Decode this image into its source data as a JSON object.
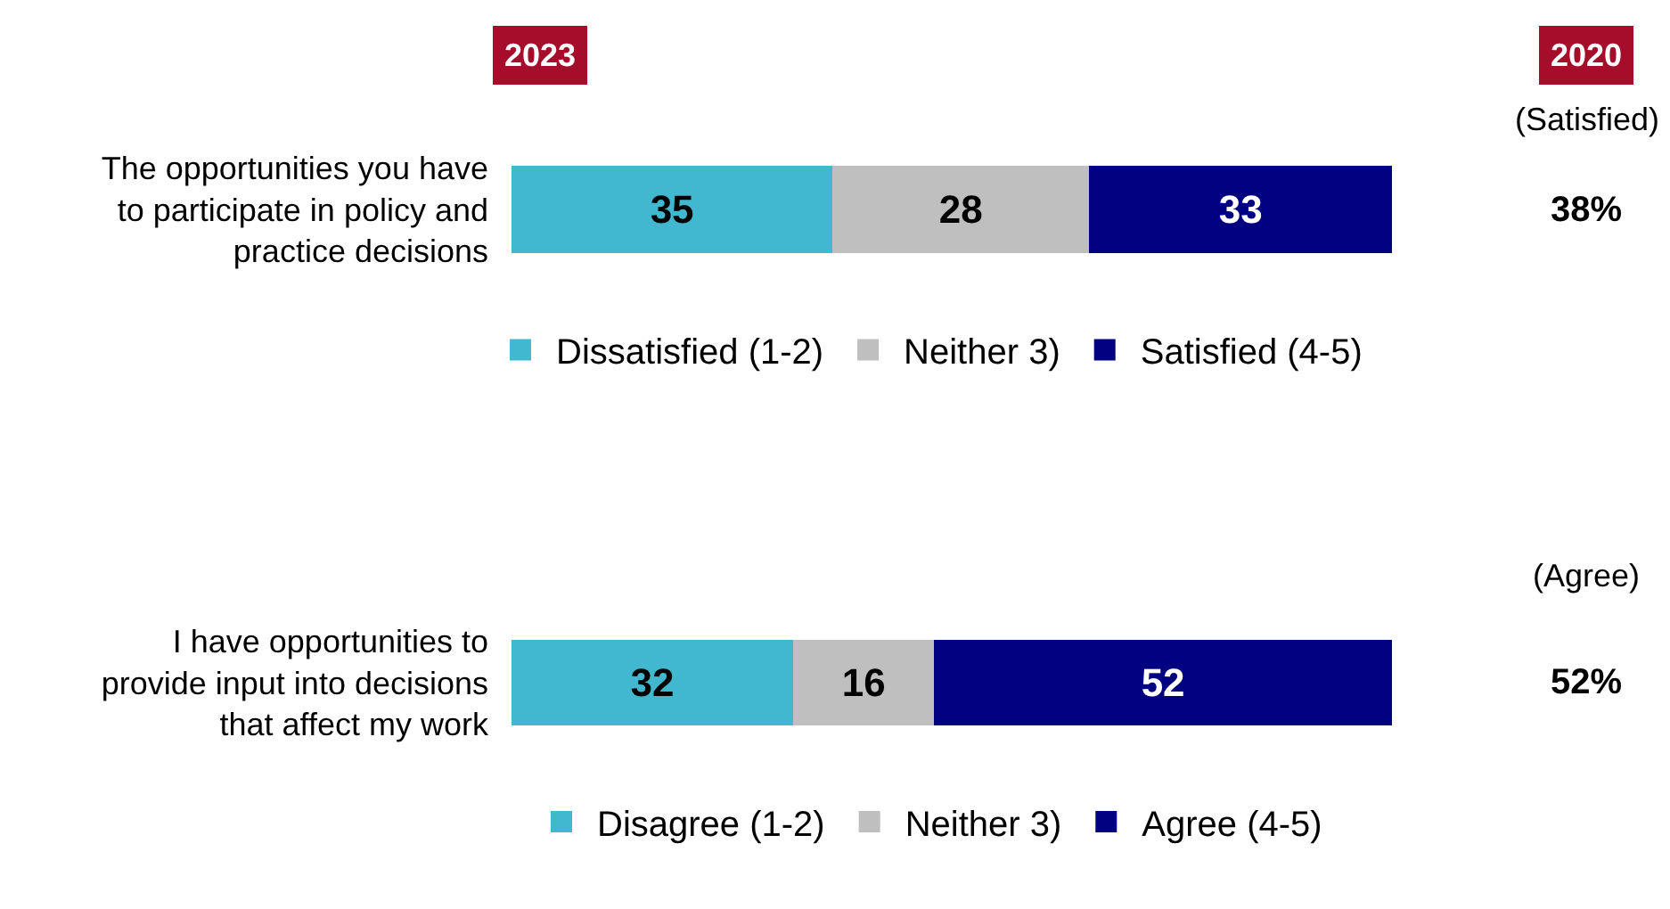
{
  "chart_data": [
    {
      "type": "bar",
      "orientation": "horizontal",
      "stacked": true,
      "categories": [
        "The opportunities you have to participate in policy and practice decisions"
      ],
      "tick_labels": "y",
      "grid": false,
      "data_labels": true,
      "legend": "bottom",
      "series": [
        {
          "name": "Dissatisfied (1-2)",
          "color": "#41b8d0",
          "values": [
            35
          ]
        },
        {
          "name": "Neither 3)",
          "color": "#bfbfbf",
          "values": [
            28
          ]
        },
        {
          "name": "Satisfied (4-5)",
          "color": "#000080",
          "values": [
            33
          ]
        }
      ],
      "annotations": [
        "2023",
        "2020",
        "(Satisfied)",
        "38%"
      ]
    },
    {
      "type": "bar",
      "orientation": "horizontal",
      "stacked": true,
      "categories": [
        "I have opportunities to provide input into decisions that affect my work"
      ],
      "tick_labels": "y",
      "grid": false,
      "data_labels": true,
      "legend": "bottom",
      "series": [
        {
          "name": "Disagree (1-2)",
          "color": "#41b8d0",
          "values": [
            32
          ]
        },
        {
          "name": "Neither 3)",
          "color": "#bfbfbf",
          "values": [
            16
          ]
        },
        {
          "name": "Agree (4-5)",
          "color": "#000080",
          "values": [
            52
          ]
        }
      ],
      "annotations": [
        "(Agree)",
        "52%"
      ]
    }
  ]
}
